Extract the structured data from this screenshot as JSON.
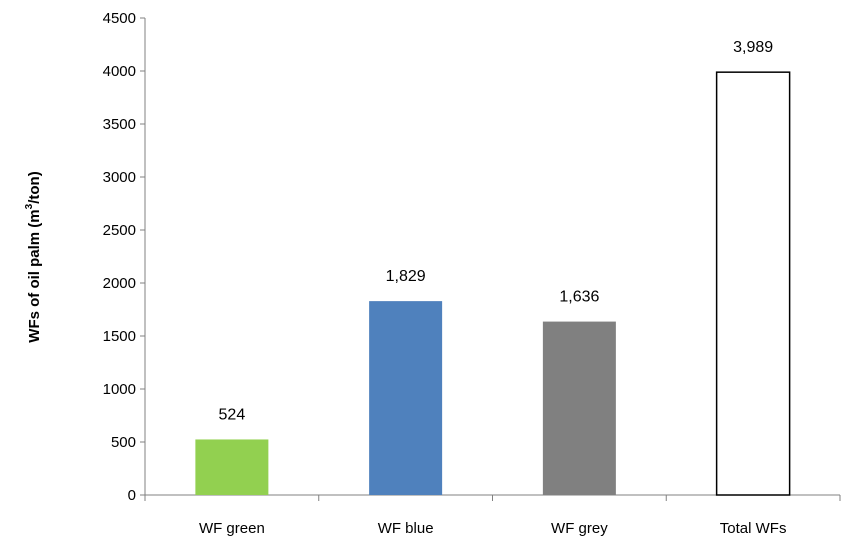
{
  "chart_data": {
    "type": "bar",
    "categories": [
      "WF green",
      "WF blue",
      "WF grey",
      "Total WFs"
    ],
    "values": [
      524,
      1829,
      1636,
      3989
    ],
    "data_labels": [
      "524",
      "1,829",
      "1,636",
      "3,989"
    ],
    "bar_colors": [
      "#92d050",
      "#4f81bd",
      "#808080",
      "#ffffff"
    ],
    "bar_outline_colors": [
      "#92d050",
      "#4f81bd",
      "#808080",
      "#000000"
    ],
    "ylabel_main": "WFs of oil palm (m",
    "ylabel_sup": "3",
    "ylabel_end": "/ton)",
    "xlabel": "",
    "ylim": [
      0,
      4500
    ],
    "yticks": [
      0,
      500,
      1000,
      1500,
      2000,
      2500,
      3000,
      3500,
      4000,
      4500
    ],
    "grid": false,
    "legend": "none"
  }
}
